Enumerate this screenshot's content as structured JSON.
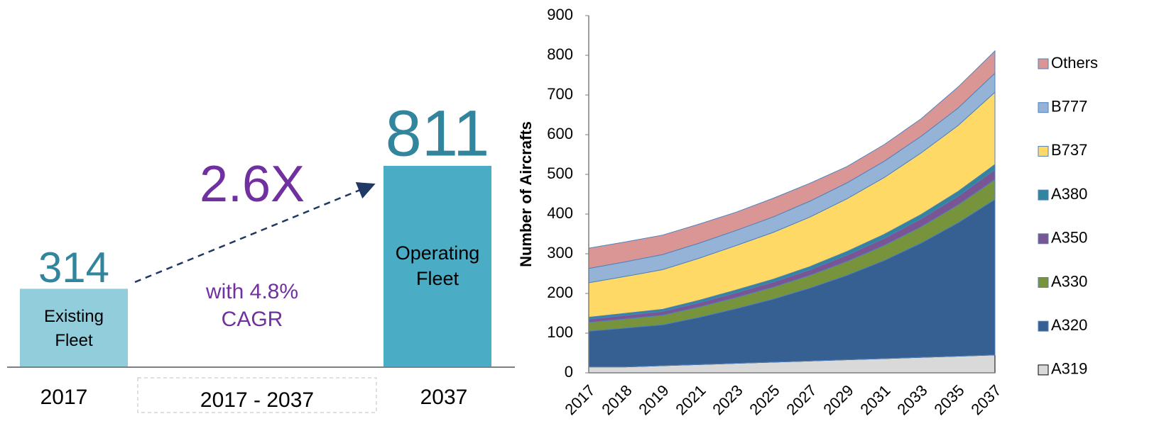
{
  "chart_data": [
    {
      "type": "bar",
      "categories": [
        "2017",
        "2037"
      ],
      "values": [
        314,
        811
      ],
      "colors": [
        "#92cddc",
        "#4bacc6"
      ],
      "bar_labels": [
        "Existing Fleet",
        "Operating Fleet"
      ],
      "multiplier": "2.6X",
      "growth_note": "with 4.8% CAGR",
      "period": "2017 - 2037"
    },
    {
      "type": "stacked_area",
      "ylabel": "Number of Aircrafts",
      "categories": [
        "2017",
        "2018",
        "2019",
        "2021",
        "2023",
        "2025",
        "2027",
        "2029",
        "2031",
        "2033",
        "2035",
        "2037"
      ],
      "series": [
        {
          "name": "A319",
          "color": "#d9d9d9",
          "values": [
            15,
            15,
            18,
            21,
            24,
            27,
            30,
            33,
            36,
            39,
            42,
            45
          ]
        },
        {
          "name": "A320",
          "color": "#376092",
          "values": [
            90,
            98,
            103,
            119,
            138,
            159,
            184,
            213,
            247,
            288,
            336,
            392
          ]
        },
        {
          "name": "A330",
          "color": "#77933c",
          "values": [
            22,
            23,
            24,
            26,
            28,
            30,
            32,
            35,
            38,
            41,
            45,
            50
          ]
        },
        {
          "name": "A350",
          "color": "#7a5594",
          "values": [
            8,
            9,
            10,
            11,
            12,
            13,
            14,
            16,
            18,
            20,
            22,
            25
          ]
        },
        {
          "name": "A380",
          "color": "#31859c",
          "values": [
            5,
            5,
            5,
            6,
            7,
            7,
            8,
            9,
            10,
            11,
            12,
            13
          ]
        },
        {
          "name": "B737",
          "color": "#ffd966",
          "values": [
            87,
            93,
            100,
            106,
            112,
            118,
            125,
            133,
            143,
            155,
            166,
            182
          ]
        },
        {
          "name": "B777",
          "color": "#95b3d7",
          "values": [
            36,
            37,
            38,
            38,
            38,
            39,
            40,
            40,
            41,
            42,
            44,
            48
          ]
        },
        {
          "name": "Others",
          "color": "#d99694",
          "values": [
            51,
            50,
            49,
            48,
            46,
            47,
            45,
            41,
            42,
            44,
            53,
            56
          ]
        }
      ],
      "ylim": [
        0,
        900
      ],
      "yticks": [
        0,
        100,
        200,
        300,
        400,
        500,
        600,
        700,
        800,
        900
      ],
      "legend": "right"
    }
  ]
}
